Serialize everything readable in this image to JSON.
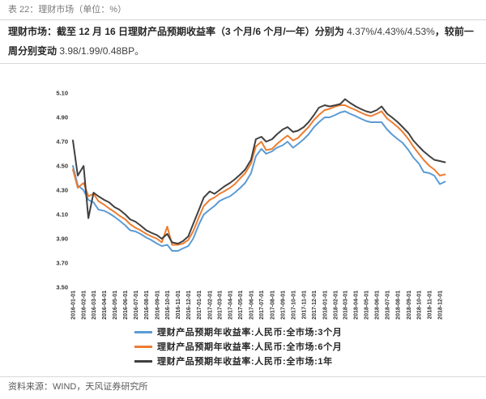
{
  "header": {
    "title": "表 22：理财市场（单位：%）"
  },
  "summary": {
    "lead": "理财市场：截至 12 月 16 日理财产品预期收益率（3 个月/6 个月/一年）分别为",
    "rates": "4.37%/4.43%/4.53%",
    "mid": "，较前一周分别变动",
    "changes": "3.98/1.99/0.48BP",
    "end": "。"
  },
  "chart_data": {
    "type": "line",
    "ylim": [
      3.5,
      5.1
    ],
    "ytick_labels": [
      "3.50",
      "3.70",
      "3.90",
      "4.10",
      "4.30",
      "4.50",
      "4.70",
      "4.90",
      "5.10"
    ],
    "xtick_labels": [
      "2016-01-01",
      "2016-02-01",
      "2016-03-01",
      "2016-04-01",
      "2016-05-01",
      "2016-06-01",
      "2016-07-01",
      "2016-08-01",
      "2016-09-01",
      "2016-10-01",
      "2016-11-01",
      "2016-12-01",
      "2017-01-01",
      "2017-02-01",
      "2017-03-01",
      "2017-04-01",
      "2017-05-01",
      "2017-06-01",
      "2017-07-01",
      "2017-08-01",
      "2017-09-01",
      "2017-10-01",
      "2017-11-01",
      "2017-12-01",
      "2018-01-01",
      "2018-02-01",
      "2018-03-01",
      "2018-04-01",
      "2018-05-01",
      "2018-06-01",
      "2018-07-01",
      "2018-08-01",
      "2018-09-01",
      "2018-10-01",
      "2018-11-01",
      "2018-12-01"
    ],
    "x": [
      "2016-01-01",
      "2016-01-15",
      "2016-02-01",
      "2016-02-15",
      "2016-03-01",
      "2016-03-15",
      "2016-04-01",
      "2016-04-15",
      "2016-05-01",
      "2016-05-15",
      "2016-06-01",
      "2016-06-15",
      "2016-07-01",
      "2016-07-15",
      "2016-08-01",
      "2016-08-15",
      "2016-09-01",
      "2016-09-15",
      "2016-10-01",
      "2016-10-15",
      "2016-11-01",
      "2016-11-15",
      "2016-12-01",
      "2016-12-15",
      "2017-01-01",
      "2017-01-15",
      "2017-02-01",
      "2017-02-15",
      "2017-03-01",
      "2017-03-15",
      "2017-04-01",
      "2017-04-15",
      "2017-05-01",
      "2017-05-15",
      "2017-06-01",
      "2017-06-15",
      "2017-07-01",
      "2017-07-15",
      "2017-08-01",
      "2017-08-15",
      "2017-09-01",
      "2017-09-15",
      "2017-10-01",
      "2017-10-15",
      "2017-11-01",
      "2017-11-15",
      "2017-12-01",
      "2017-12-15",
      "2018-01-01",
      "2018-01-15",
      "2018-02-01",
      "2018-02-15",
      "2018-03-01",
      "2018-03-15",
      "2018-04-01",
      "2018-04-15",
      "2018-05-01",
      "2018-05-15",
      "2018-06-01",
      "2018-06-15",
      "2018-07-01",
      "2018-07-15",
      "2018-08-01",
      "2018-08-15",
      "2018-09-01",
      "2018-09-15",
      "2018-10-01",
      "2018-10-15",
      "2018-11-01",
      "2018-11-15",
      "2018-12-01",
      "2018-12-16"
    ],
    "series": [
      {
        "name": "理财产品预期年收益率:人民币:全市场:3个月",
        "color": "#5B9BD5",
        "values": [
          4.5,
          4.34,
          4.3,
          4.22,
          4.2,
          4.14,
          4.13,
          4.11,
          4.08,
          4.05,
          4.01,
          3.97,
          3.96,
          3.94,
          3.91,
          3.89,
          3.86,
          3.84,
          3.85,
          3.8,
          3.8,
          3.82,
          3.84,
          3.9,
          4.02,
          4.1,
          4.14,
          4.17,
          4.21,
          4.23,
          4.25,
          4.28,
          4.32,
          4.36,
          4.44,
          4.58,
          4.64,
          4.6,
          4.62,
          4.65,
          4.67,
          4.7,
          4.65,
          4.68,
          4.72,
          4.76,
          4.82,
          4.86,
          4.9,
          4.9,
          4.92,
          4.94,
          4.95,
          4.93,
          4.91,
          4.89,
          4.87,
          4.86,
          4.86,
          4.86,
          4.8,
          4.76,
          4.72,
          4.69,
          4.63,
          4.57,
          4.52,
          4.45,
          4.44,
          4.42,
          4.35,
          4.37
        ]
      },
      {
        "name": "理财产品预期年收益率:人民币:全市场:6个月",
        "color": "#ED7D31",
        "values": [
          4.47,
          4.32,
          4.36,
          4.25,
          4.27,
          4.21,
          4.18,
          4.15,
          4.12,
          4.09,
          4.06,
          4.02,
          3.99,
          3.97,
          3.94,
          3.92,
          3.9,
          3.87,
          4.0,
          3.85,
          3.85,
          3.86,
          3.89,
          3.96,
          4.08,
          4.17,
          4.22,
          4.24,
          4.27,
          4.29,
          4.32,
          4.35,
          4.4,
          4.44,
          4.52,
          4.66,
          4.7,
          4.63,
          4.64,
          4.68,
          4.72,
          4.75,
          4.71,
          4.73,
          4.78,
          4.82,
          4.88,
          4.92,
          4.96,
          4.97,
          4.99,
          5.0,
          5.0,
          4.98,
          4.96,
          4.94,
          4.92,
          4.91,
          4.93,
          4.95,
          4.89,
          4.86,
          4.82,
          4.78,
          4.72,
          4.66,
          4.6,
          4.55,
          4.5,
          4.47,
          4.42,
          4.43
        ]
      },
      {
        "name": "理财产品预期年收益率:人民币:全市场:1年",
        "color": "#404040",
        "values": [
          4.71,
          4.42,
          4.5,
          4.07,
          4.28,
          4.25,
          4.22,
          4.2,
          4.16,
          4.14,
          4.1,
          4.06,
          4.04,
          4.01,
          3.97,
          3.95,
          3.93,
          3.9,
          3.94,
          3.87,
          3.86,
          3.88,
          3.92,
          4.02,
          4.14,
          4.24,
          4.29,
          4.27,
          4.3,
          4.33,
          4.36,
          4.39,
          4.43,
          4.47,
          4.55,
          4.72,
          4.74,
          4.7,
          4.72,
          4.76,
          4.8,
          4.82,
          4.78,
          4.79,
          4.82,
          4.86,
          4.92,
          4.98,
          5.0,
          4.99,
          5.0,
          5.01,
          5.05,
          5.02,
          4.99,
          4.97,
          4.95,
          4.94,
          4.96,
          4.99,
          4.93,
          4.9,
          4.86,
          4.82,
          4.77,
          4.71,
          4.66,
          4.62,
          4.58,
          4.55,
          4.54,
          4.53
        ]
      }
    ],
    "grid": false,
    "legend": "bottom"
  },
  "footer": {
    "source": "资料来源：WIND，天风证券研究所"
  }
}
